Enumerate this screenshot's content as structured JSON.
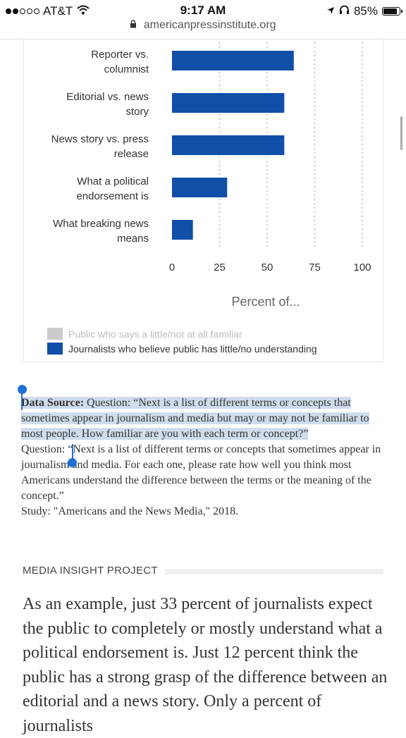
{
  "status_bar": {
    "carrier": "AT&T",
    "time": "9:17 AM",
    "battery": "85%",
    "signal_bars": 2,
    "battery_level": 0.85
  },
  "browser": {
    "url": "americanpressinstitute.org"
  },
  "chart_data": {
    "type": "bar",
    "orientation": "horizontal",
    "categories": [
      [
        "Reporter vs.",
        "columnist"
      ],
      [
        "Editorial vs. news",
        "story"
      ],
      [
        "News story vs. press",
        "release"
      ],
      [
        "What a political",
        "endorsement is"
      ],
      [
        "What breaking news",
        "means"
      ]
    ],
    "series": [
      {
        "name": "Public who says a little/not at all familiar",
        "values": [
          null,
          null,
          null,
          null,
          null
        ],
        "color": "#cccccc"
      },
      {
        "name": "Journalists who believe public has little/no understanding",
        "values": [
          64,
          59,
          59,
          29,
          11
        ],
        "color": "#0f4fa8"
      }
    ],
    "xticks": [
      "0",
      "25",
      "50",
      "75",
      "100"
    ],
    "xlim": [
      0,
      100
    ],
    "xlabel": "Percent of...",
    "grid": "vertical dotted",
    "legend_position": "bottom"
  },
  "source": {
    "label": "Data Source:",
    "selected_text": " Question: “Next is a list of different terms or concepts that sometimes appear in journalism and media but may or may not be familiar to most people. How familiar are you with each term or concept?”",
    "question2": "Question: “Next is a list of different terms or concepts that sometimes appear in journalism and media. For each one, please rate how well you think most Americans understand the difference between the terms or the meaning of the concept.”",
    "study": "Study: \"Americans and the News Media,\" 2018."
  },
  "section": {
    "label": "MEDIA INSIGHT PROJECT"
  },
  "article": {
    "paragraph": "As an example, just 33 percent of journalists expect the public to completely or mostly understand what a political endorsement is. Just 12 percent think the public has a strong grasp of the difference between an editorial and a news story. Only a percent of journalists"
  }
}
